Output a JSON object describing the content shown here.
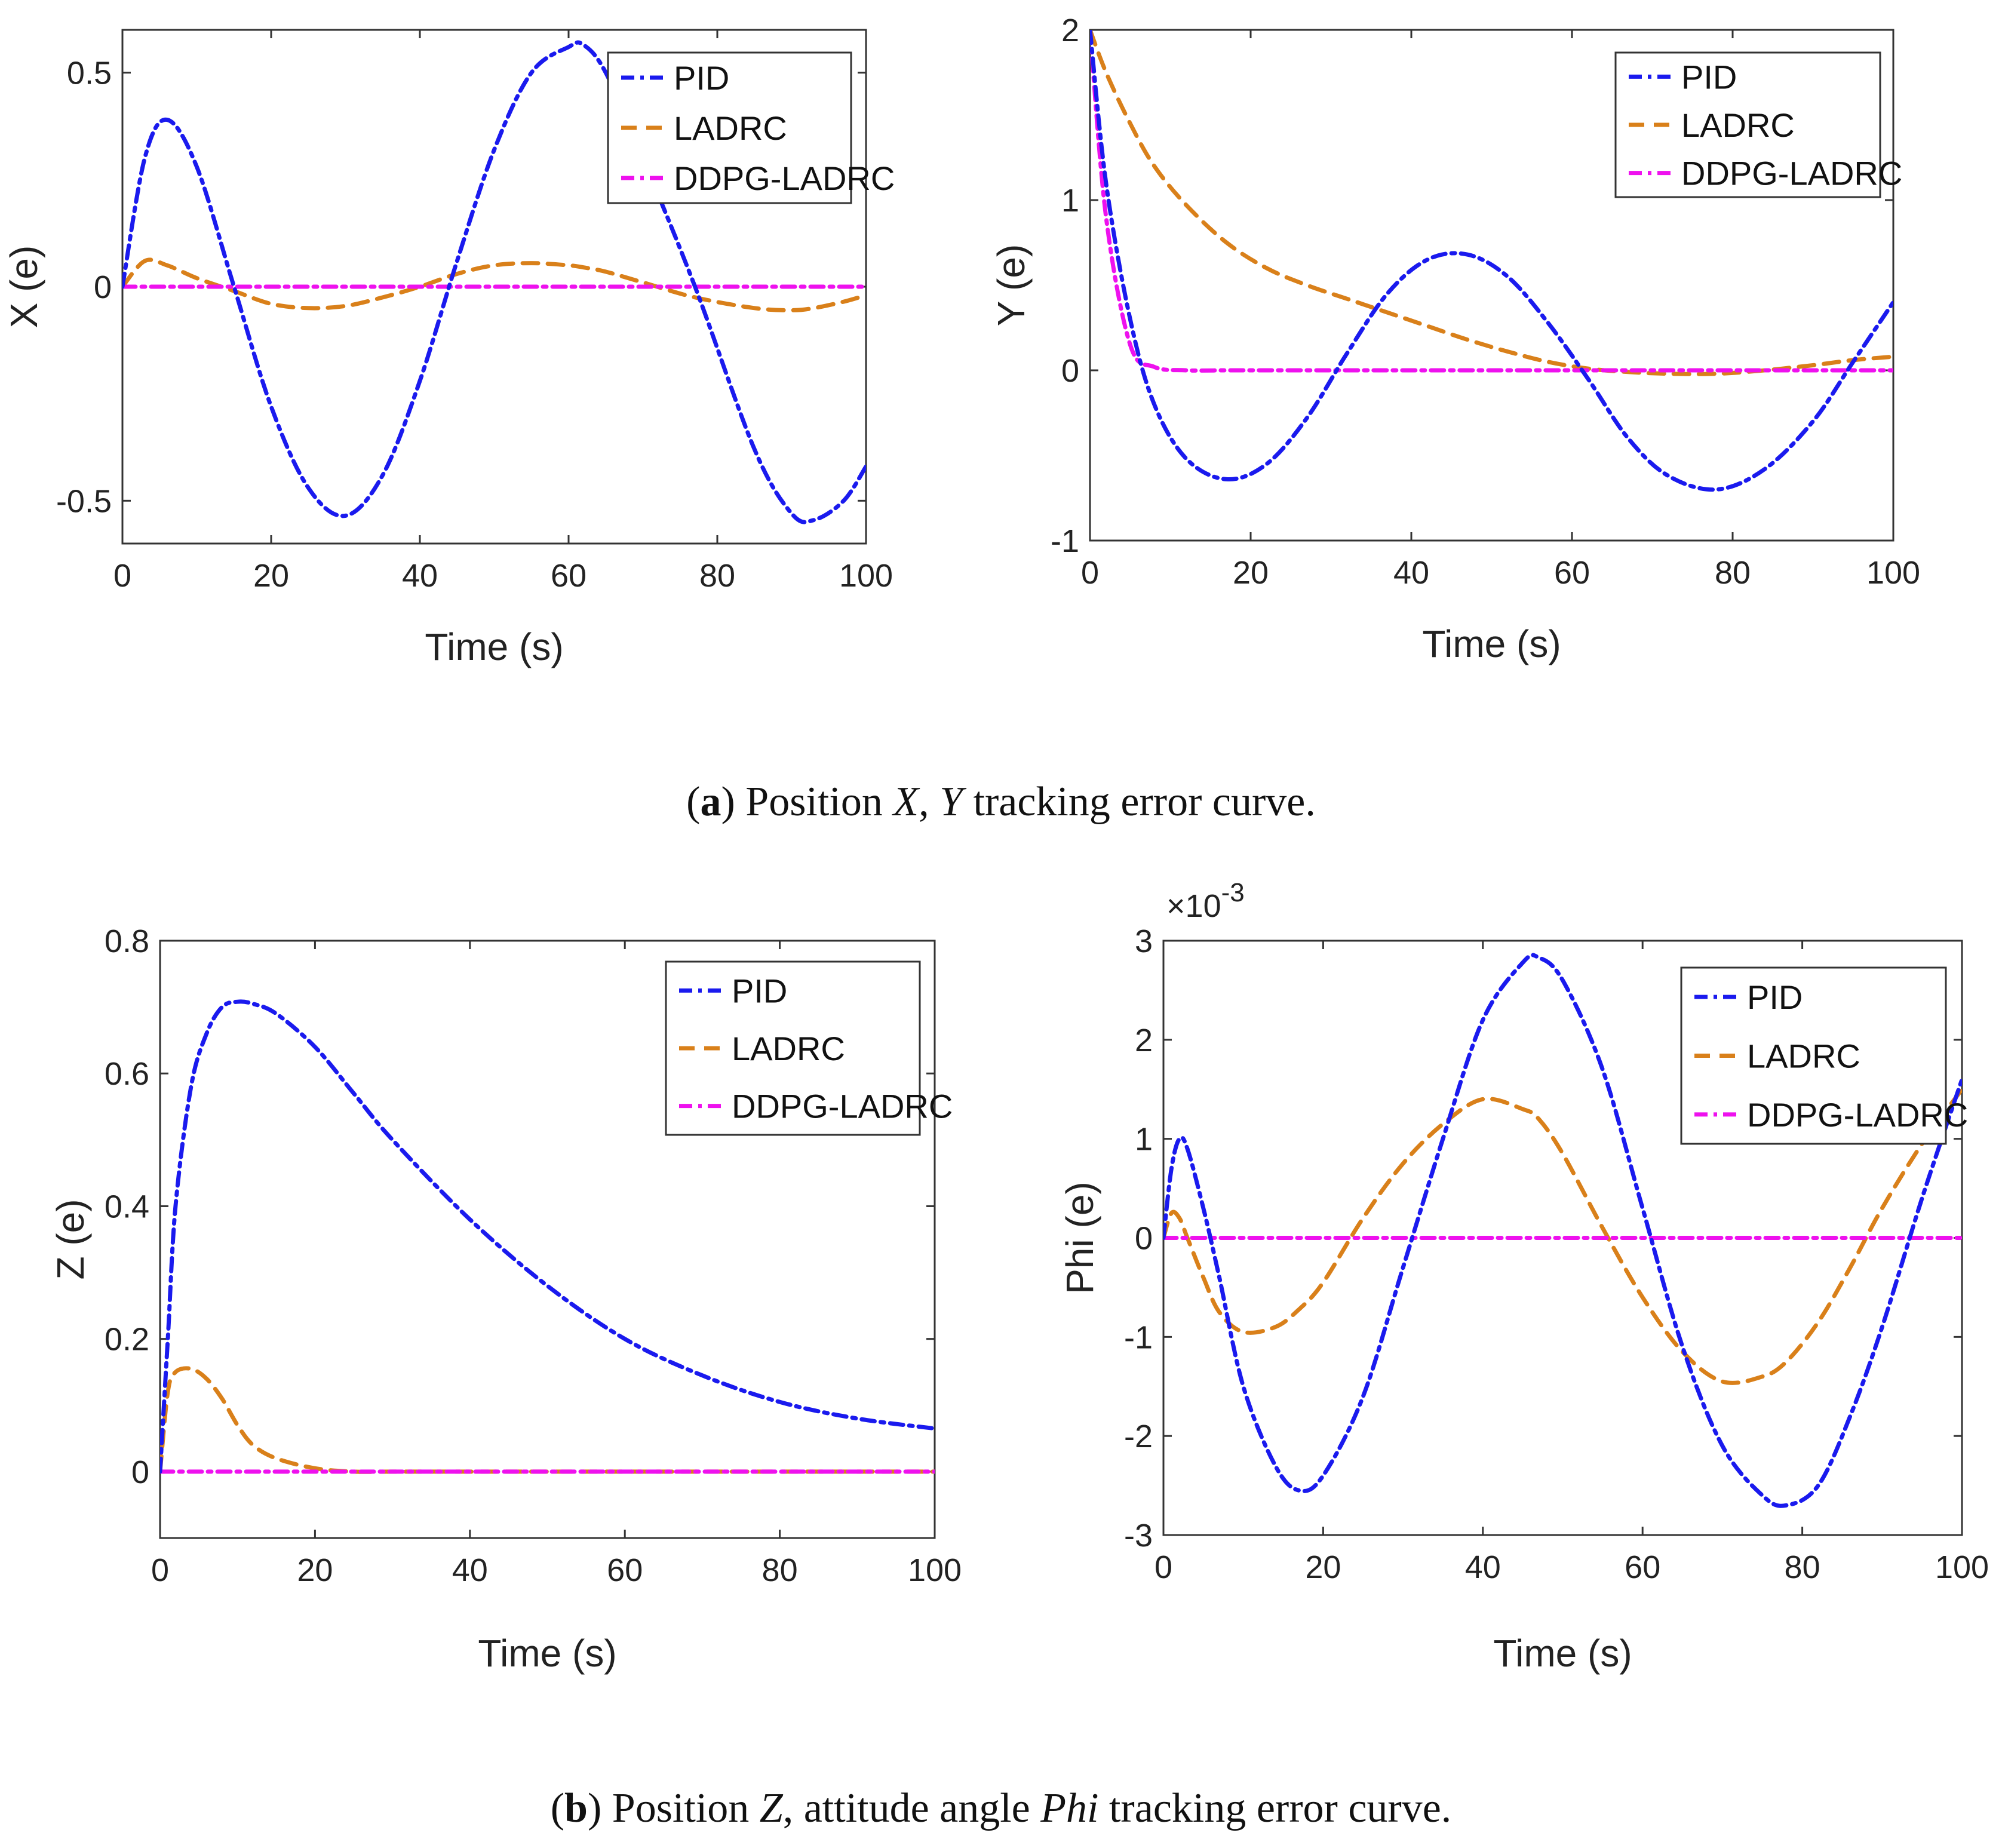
{
  "colors": {
    "PID": "#1a1aee",
    "LADRC": "#d9801a",
    "DDPG-LADRC": "#ee11ee"
  },
  "captions": {
    "a": {
      "letter": "a",
      "prefix": "Position ",
      "var1": "X",
      "sep": ", ",
      "var2": "Y",
      "suffix": "   tracking error curve."
    },
    "b": {
      "letter": "b",
      "prefix": "Position ",
      "var1": "Z",
      "sep": ", attitude angle ",
      "var2": "Phi",
      "suffix": "   tracking error curve."
    }
  },
  "chart_data": [
    {
      "id": "x",
      "type": "line",
      "xlabel": "Time (s)",
      "ylabel": "X (e)",
      "xlim": [
        0,
        100
      ],
      "ylim": [
        -0.6,
        0.6
      ],
      "xticks": [
        0,
        20,
        40,
        60,
        80,
        100
      ],
      "yticks": [
        -0.5,
        0,
        0.5
      ],
      "ytick_labels": [
        "-0.5",
        "0",
        "0.5"
      ],
      "legend_position": "top-right",
      "x": [
        0,
        3,
        6,
        10,
        15,
        20,
        25,
        30,
        35,
        40,
        45,
        50,
        55,
        60,
        62,
        65,
        70,
        77,
        85,
        90,
        93,
        97,
        100
      ],
      "series": [
        {
          "name": "PID",
          "values": [
            0,
            0.3,
            0.39,
            0.28,
            0.0,
            -0.28,
            -0.47,
            -0.535,
            -0.44,
            -0.22,
            0.06,
            0.32,
            0.5,
            0.56,
            0.565,
            0.5,
            0.3,
            0.0,
            -0.38,
            -0.53,
            -0.545,
            -0.5,
            -0.42
          ]
        },
        {
          "name": "LADRC",
          "values": [
            0,
            0.06,
            0.05,
            0.02,
            -0.01,
            -0.04,
            -0.05,
            -0.045,
            -0.025,
            0.0,
            0.03,
            0.05,
            0.055,
            0.05,
            0.045,
            0.035,
            0.01,
            -0.025,
            -0.05,
            -0.055,
            -0.05,
            -0.035,
            -0.02
          ]
        },
        {
          "name": "DDPG-LADRC",
          "values": [
            0,
            0,
            0,
            0,
            0,
            0,
            0,
            0,
            0,
            0,
            0,
            0,
            0,
            0,
            0,
            0,
            0,
            0,
            0,
            0,
            0,
            0,
            0
          ]
        }
      ]
    },
    {
      "id": "y",
      "type": "line",
      "xlabel": "Time (s)",
      "ylabel": "Y (e)",
      "xlim": [
        0,
        100
      ],
      "ylim": [
        -1,
        2
      ],
      "xticks": [
        0,
        20,
        40,
        60,
        80,
        100
      ],
      "yticks": [
        -1,
        0,
        1,
        2
      ],
      "ytick_labels": [
        "-1",
        "0",
        "1",
        "2"
      ],
      "legend_position": "top-right",
      "x": [
        0,
        2,
        5,
        8,
        12,
        17,
        22,
        27,
        32,
        37,
        42,
        47,
        52,
        57,
        62,
        67,
        72,
        78,
        84,
        90,
        95,
        100
      ],
      "series": [
        {
          "name": "PID",
          "values": [
            2,
            1.1,
            0.3,
            -0.2,
            -0.52,
            -0.64,
            -0.55,
            -0.28,
            0.1,
            0.45,
            0.65,
            0.68,
            0.55,
            0.28,
            -0.05,
            -0.4,
            -0.62,
            -0.7,
            -0.58,
            -0.3,
            0.05,
            0.4
          ]
        },
        {
          "name": "LADRC",
          "values": [
            2,
            1.75,
            1.45,
            1.2,
            0.97,
            0.75,
            0.6,
            0.5,
            0.42,
            0.34,
            0.26,
            0.18,
            0.11,
            0.05,
            0.01,
            -0.01,
            -0.02,
            -0.02,
            0.0,
            0.03,
            0.06,
            0.08
          ]
        },
        {
          "name": "DDPG-LADRC",
          "values": [
            2,
            0.9,
            0.15,
            0.02,
            0,
            0,
            0,
            0,
            0,
            0,
            0,
            0,
            0,
            0,
            0,
            0,
            0,
            0,
            0,
            0,
            0,
            0
          ]
        }
      ]
    },
    {
      "id": "z",
      "type": "line",
      "xlabel": "Time (s)",
      "ylabel": "Z (e)",
      "xlim": [
        0,
        100
      ],
      "ylim": [
        -0.1,
        0.8
      ],
      "xticks": [
        0,
        20,
        40,
        60,
        80,
        100
      ],
      "yticks": [
        0,
        0.2,
        0.4,
        0.6,
        0.8
      ],
      "ytick_labels": [
        "0",
        "0.2",
        "0.4",
        "0.6",
        "0.8"
      ],
      "legend_position": "top-right",
      "x": [
        0,
        1,
        2,
        4,
        6,
        8,
        10,
        12,
        15,
        20,
        25,
        30,
        40,
        50,
        60,
        70,
        80,
        90,
        100
      ],
      "series": [
        {
          "name": "PID",
          "values": [
            0,
            0.2,
            0.4,
            0.58,
            0.66,
            0.7,
            0.708,
            0.705,
            0.69,
            0.64,
            0.57,
            0.5,
            0.38,
            0.28,
            0.2,
            0.145,
            0.105,
            0.08,
            0.065
          ]
        },
        {
          "name": "LADRC",
          "values": [
            0,
            0.12,
            0.15,
            0.155,
            0.14,
            0.11,
            0.07,
            0.04,
            0.02,
            0.005,
            0,
            0,
            0,
            0,
            0,
            0,
            0,
            0,
            0
          ]
        },
        {
          "name": "DDPG-LADRC",
          "values": [
            0,
            0,
            0,
            0,
            0,
            0,
            0,
            0,
            0,
            0,
            0,
            0,
            0,
            0,
            0,
            0,
            0,
            0,
            0
          ]
        }
      ]
    },
    {
      "id": "phi",
      "type": "line",
      "xlabel": "Time (s)",
      "ylabel": "Phi (e)",
      "exponent_base": "×10",
      "exponent_power": "-3",
      "xlim": [
        0,
        100
      ],
      "ylim": [
        -3,
        3
      ],
      "xticks": [
        0,
        20,
        40,
        60,
        80,
        100
      ],
      "yticks": [
        -3,
        -2,
        -1,
        0,
        1,
        2,
        3
      ],
      "ytick_labels": [
        "-3",
        "-2",
        "-1",
        "0",
        "1",
        "2",
        "3"
      ],
      "legend_position": "top-right",
      "x": [
        0,
        1,
        2,
        3,
        5,
        7,
        10,
        14,
        17,
        20,
        25,
        30,
        35,
        40,
        45,
        47,
        50,
        55,
        60,
        65,
        70,
        75,
        78,
        82,
        86,
        90,
        95,
        100
      ],
      "series": [
        {
          "name": "PID",
          "values": [
            0,
            0.7,
            1.0,
            0.9,
            0.3,
            -0.4,
            -1.5,
            -2.3,
            -2.55,
            -2.4,
            -1.6,
            -0.3,
            1.0,
            2.2,
            2.78,
            2.83,
            2.6,
            1.7,
            0.3,
            -1.1,
            -2.1,
            -2.6,
            -2.7,
            -2.5,
            -1.8,
            -0.9,
            0.4,
            1.6
          ]
        },
        {
          "name": "LADRC",
          "values": [
            0,
            0.25,
            0.2,
            0.0,
            -0.4,
            -0.75,
            -0.95,
            -0.9,
            -0.72,
            -0.45,
            0.2,
            0.75,
            1.15,
            1.4,
            1.3,
            1.2,
            0.85,
            0.1,
            -0.6,
            -1.15,
            -1.45,
            -1.4,
            -1.25,
            -0.85,
            -0.3,
            0.3,
            0.95,
            1.5
          ]
        },
        {
          "name": "DDPG-LADRC",
          "values": [
            0,
            0,
            0,
            0,
            0,
            0,
            0,
            0,
            0,
            0,
            0,
            0,
            0,
            0,
            0,
            0,
            0,
            0,
            0,
            0,
            0,
            0,
            0,
            0,
            0,
            0,
            0,
            0
          ]
        }
      ]
    }
  ]
}
